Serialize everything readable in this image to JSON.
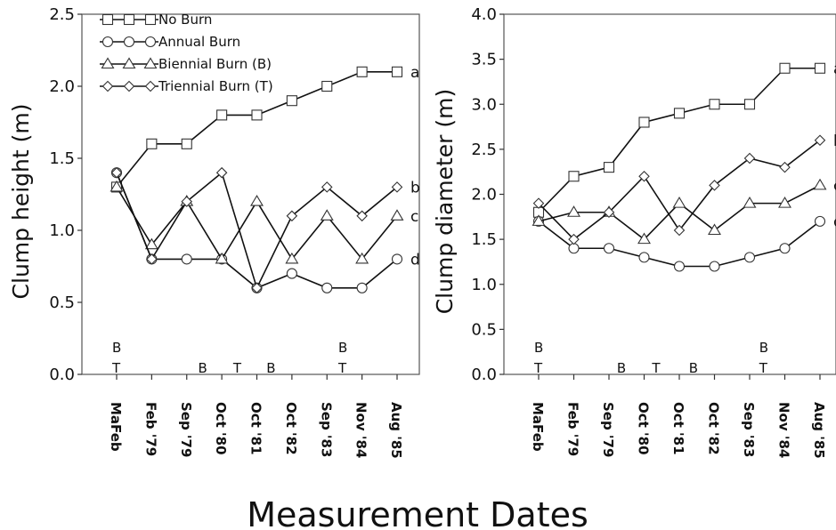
{
  "figure": {
    "xlabel": "Measurement Dates"
  },
  "chart_data": [
    {
      "type": "line",
      "ylabel": "Clump height (m)",
      "ylim": [
        0,
        2.5
      ],
      "yticks": [
        "0.0",
        "0.5",
        "1.0",
        "1.5",
        "2.0",
        "2.5"
      ],
      "categories": [
        "MaFeb",
        "Feb '79",
        "Sep '79",
        "Oct '80",
        "Oct '81",
        "Oct '82",
        "Sep '83",
        "Nov '84",
        "Aug '85"
      ],
      "legend": {
        "position": "top-left"
      },
      "series": [
        {
          "name": "No Burn",
          "marker": "square",
          "values": [
            1.3,
            1.6,
            1.6,
            1.8,
            1.8,
            1.9,
            2.0,
            2.1,
            2.1
          ],
          "end_label": "a"
        },
        {
          "name": "Annual Burn",
          "marker": "circle",
          "values": [
            1.4,
            0.8,
            0.8,
            0.8,
            0.6,
            0.7,
            0.6,
            0.6,
            0.8
          ],
          "end_label": "d"
        },
        {
          "name": "Biennial Burn (B)",
          "marker": "triangle",
          "values": [
            1.3,
            0.9,
            1.2,
            0.8,
            1.2,
            0.8,
            1.1,
            0.8,
            1.1
          ],
          "end_label": "c"
        },
        {
          "name": "Triennial Burn (T)",
          "marker": "diamond",
          "values": [
            1.4,
            0.8,
            1.2,
            1.4,
            0.6,
            1.1,
            1.3,
            1.1,
            1.3
          ],
          "end_label": "b"
        }
      ],
      "burn_markers": [
        {
          "label": "B",
          "x": 0,
          "row": 1
        },
        {
          "label": "T",
          "x": 0,
          "row": 2
        },
        {
          "label": "B",
          "x": 2.45,
          "row": 2
        },
        {
          "label": "T",
          "x": 3.45,
          "row": 2
        },
        {
          "label": "B",
          "x": 4.4,
          "row": 2
        },
        {
          "label": "B",
          "x": 6.45,
          "row": 1
        },
        {
          "label": "T",
          "x": 6.45,
          "row": 2
        }
      ]
    },
    {
      "type": "line",
      "ylabel": "Clump diameter (m)",
      "ylim": [
        0,
        4.0
      ],
      "yticks": [
        "0.0",
        "0.5",
        "1.0",
        "1.5",
        "2.0",
        "2.5",
        "3.0",
        "3.5",
        "4.0"
      ],
      "categories": [
        "MaFeb",
        "Feb '79",
        "Sep '79",
        "Oct '80",
        "Oct '81",
        "Oct '82",
        "Sep '83",
        "Nov '84",
        "Aug '85"
      ],
      "series": [
        {
          "name": "No Burn",
          "marker": "square",
          "values": [
            1.8,
            2.2,
            2.3,
            2.8,
            2.9,
            3.0,
            3.0,
            3.4,
            3.4
          ],
          "end_label": "a"
        },
        {
          "name": "Annual Burn",
          "marker": "circle",
          "values": [
            1.7,
            1.4,
            1.4,
            1.3,
            1.2,
            1.2,
            1.3,
            1.4,
            1.7
          ],
          "end_label": "d"
        },
        {
          "name": "Biennial Burn (B)",
          "marker": "triangle",
          "values": [
            1.7,
            1.8,
            1.8,
            1.5,
            1.9,
            1.6,
            1.9,
            1.9,
            2.1
          ],
          "end_label": "c"
        },
        {
          "name": "Triennial Burn (T)",
          "marker": "diamond",
          "values": [
            1.9,
            1.5,
            1.8,
            2.2,
            1.6,
            2.1,
            2.4,
            2.3,
            2.6
          ],
          "end_label": "b"
        }
      ],
      "burn_markers": [
        {
          "label": "B",
          "x": 0,
          "row": 1
        },
        {
          "label": "T",
          "x": 0,
          "row": 2
        },
        {
          "label": "B",
          "x": 2.35,
          "row": 2
        },
        {
          "label": "T",
          "x": 3.35,
          "row": 2
        },
        {
          "label": "B",
          "x": 4.4,
          "row": 2
        },
        {
          "label": "B",
          "x": 6.4,
          "row": 1
        },
        {
          "label": "T",
          "x": 6.4,
          "row": 2
        }
      ]
    }
  ]
}
